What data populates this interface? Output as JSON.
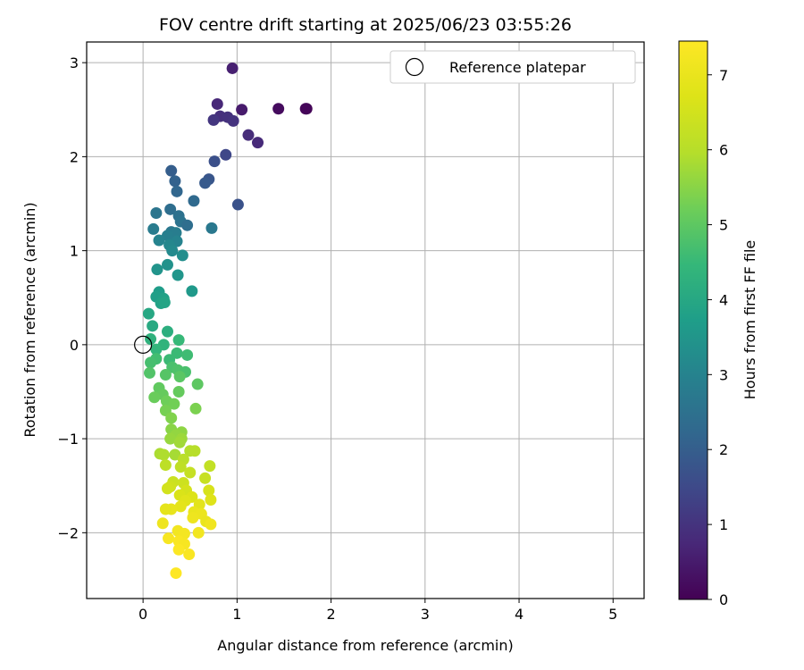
{
  "chart_data": {
    "type": "scatter",
    "title": "FOV centre drift starting at 2025/06/23 03:55:26",
    "xlabel": "Angular distance from reference (arcmin)",
    "ylabel": "Rotation from reference (arcmin)",
    "xlim": [
      -0.6,
      5.33
    ],
    "ylim": [
      -2.7,
      3.22
    ],
    "xticks": [
      0,
      1,
      2,
      3,
      4,
      5
    ],
    "yticks": [
      -2,
      -1,
      0,
      1,
      2,
      3
    ],
    "xtick_labels": [
      "0",
      "1",
      "2",
      "3",
      "4",
      "5"
    ],
    "ytick_labels": [
      "−2",
      "−1",
      "0",
      "1",
      "2",
      "3"
    ],
    "grid": true,
    "colormap": "viridis",
    "colorbar": {
      "label": "Hours from first FF file",
      "range": [
        0,
        7.45
      ],
      "ticks": [
        0,
        1,
        2,
        3,
        4,
        5,
        6,
        7
      ],
      "tick_labels": [
        "0",
        "1",
        "2",
        "3",
        "4",
        "5",
        "6",
        "7"
      ]
    },
    "legend": {
      "entries": [
        "Reference platepar"
      ],
      "placement": "upper right"
    },
    "reference_point": {
      "x": 0.0,
      "y": 0.0,
      "label": "Reference platepar"
    },
    "points": [
      {
        "x": 1.74,
        "y": 2.51,
        "t": 0.05
      },
      {
        "x": 1.73,
        "y": 2.51,
        "t": 0.1
      },
      {
        "x": 1.44,
        "y": 2.51,
        "t": 0.2
      },
      {
        "x": 1.05,
        "y": 2.5,
        "t": 0.5
      },
      {
        "x": 0.95,
        "y": 2.94,
        "t": 0.6
      },
      {
        "x": 0.79,
        "y": 2.56,
        "t": 0.75
      },
      {
        "x": 0.82,
        "y": 2.43,
        "t": 0.9
      },
      {
        "x": 0.9,
        "y": 2.42,
        "t": 0.95
      },
      {
        "x": 0.75,
        "y": 2.39,
        "t": 1.05
      },
      {
        "x": 0.96,
        "y": 2.38,
        "t": 1.0
      },
      {
        "x": 1.12,
        "y": 2.23,
        "t": 0.85
      },
      {
        "x": 1.22,
        "y": 2.15,
        "t": 0.8
      },
      {
        "x": 0.88,
        "y": 2.02,
        "t": 1.45
      },
      {
        "x": 0.76,
        "y": 1.95,
        "t": 1.65
      },
      {
        "x": 0.7,
        "y": 1.76,
        "t": 1.8
      },
      {
        "x": 0.66,
        "y": 1.72,
        "t": 1.9
      },
      {
        "x": 1.01,
        "y": 1.49,
        "t": 1.7
      },
      {
        "x": 0.3,
        "y": 1.85,
        "t": 2.0
      },
      {
        "x": 0.34,
        "y": 1.74,
        "t": 2.1
      },
      {
        "x": 0.36,
        "y": 1.63,
        "t": 2.2
      },
      {
        "x": 0.54,
        "y": 1.53,
        "t": 2.3
      },
      {
        "x": 0.29,
        "y": 1.44,
        "t": 2.4
      },
      {
        "x": 0.14,
        "y": 1.4,
        "t": 2.6
      },
      {
        "x": 0.38,
        "y": 1.37,
        "t": 2.5
      },
      {
        "x": 0.4,
        "y": 1.31,
        "t": 2.55
      },
      {
        "x": 0.47,
        "y": 1.27,
        "t": 2.4
      },
      {
        "x": 0.73,
        "y": 1.24,
        "t": 2.7
      },
      {
        "x": 0.11,
        "y": 1.23,
        "t": 2.8
      },
      {
        "x": 0.3,
        "y": 1.2,
        "t": 2.7
      },
      {
        "x": 0.35,
        "y": 1.19,
        "t": 2.85
      },
      {
        "x": 0.26,
        "y": 1.16,
        "t": 2.9
      },
      {
        "x": 0.17,
        "y": 1.11,
        "t": 3.0
      },
      {
        "x": 0.36,
        "y": 1.1,
        "t": 3.0
      },
      {
        "x": 0.28,
        "y": 1.06,
        "t": 3.1
      },
      {
        "x": 0.31,
        "y": 1.0,
        "t": 3.2
      },
      {
        "x": 0.42,
        "y": 0.95,
        "t": 3.3
      },
      {
        "x": 0.26,
        "y": 0.85,
        "t": 3.4
      },
      {
        "x": 0.15,
        "y": 0.8,
        "t": 3.45
      },
      {
        "x": 0.37,
        "y": 0.74,
        "t": 3.5
      },
      {
        "x": 0.52,
        "y": 0.57,
        "t": 3.6
      },
      {
        "x": 0.17,
        "y": 0.56,
        "t": 3.7
      },
      {
        "x": 0.14,
        "y": 0.51,
        "t": 3.75
      },
      {
        "x": 0.22,
        "y": 0.49,
        "t": 3.8
      },
      {
        "x": 0.19,
        "y": 0.44,
        "t": 3.85
      },
      {
        "x": 0.23,
        "y": 0.45,
        "t": 3.9
      },
      {
        "x": 0.06,
        "y": 0.33,
        "t": 4.0
      },
      {
        "x": 0.1,
        "y": 0.2,
        "t": 4.05
      },
      {
        "x": 0.26,
        "y": 0.14,
        "t": 4.2
      },
      {
        "x": 0.08,
        "y": 0.06,
        "t": 4.3
      },
      {
        "x": 0.22,
        "y": 0.0,
        "t": 4.35
      },
      {
        "x": 0.38,
        "y": 0.05,
        "t": 4.5
      },
      {
        "x": 0.14,
        "y": -0.05,
        "t": 4.4
      },
      {
        "x": 0.36,
        "y": -0.09,
        "t": 4.55
      },
      {
        "x": 0.47,
        "y": -0.11,
        "t": 4.6
      },
      {
        "x": 0.28,
        "y": -0.16,
        "t": 4.55
      },
      {
        "x": 0.14,
        "y": -0.15,
        "t": 4.65
      },
      {
        "x": 0.08,
        "y": -0.19,
        "t": 4.7
      },
      {
        "x": 0.31,
        "y": -0.24,
        "t": 4.75
      },
      {
        "x": 0.37,
        "y": -0.27,
        "t": 4.8
      },
      {
        "x": 0.45,
        "y": -0.29,
        "t": 4.75
      },
      {
        "x": 0.07,
        "y": -0.3,
        "t": 4.85
      },
      {
        "x": 0.24,
        "y": -0.32,
        "t": 4.9
      },
      {
        "x": 0.39,
        "y": -0.34,
        "t": 4.95
      },
      {
        "x": 0.58,
        "y": -0.42,
        "t": 5.0
      },
      {
        "x": 0.17,
        "y": -0.46,
        "t": 5.05
      },
      {
        "x": 0.38,
        "y": -0.5,
        "t": 5.1
      },
      {
        "x": 0.21,
        "y": -0.53,
        "t": 5.1
      },
      {
        "x": 0.12,
        "y": -0.56,
        "t": 5.15
      },
      {
        "x": 0.25,
        "y": -0.6,
        "t": 5.2
      },
      {
        "x": 0.33,
        "y": -0.63,
        "t": 5.25
      },
      {
        "x": 0.24,
        "y": -0.7,
        "t": 5.3
      },
      {
        "x": 0.56,
        "y": -0.68,
        "t": 5.35
      },
      {
        "x": 0.3,
        "y": -0.78,
        "t": 5.4
      },
      {
        "x": 0.3,
        "y": -0.9,
        "t": 5.5
      },
      {
        "x": 0.41,
        "y": -0.93,
        "t": 5.55
      },
      {
        "x": 0.35,
        "y": -0.96,
        "t": 5.6
      },
      {
        "x": 0.29,
        "y": -1.0,
        "t": 5.65
      },
      {
        "x": 0.41,
        "y": -1.0,
        "t": 5.7
      },
      {
        "x": 0.39,
        "y": -1.04,
        "t": 5.75
      },
      {
        "x": 0.18,
        "y": -1.16,
        "t": 5.85
      },
      {
        "x": 0.22,
        "y": -1.17,
        "t": 5.9
      },
      {
        "x": 0.34,
        "y": -1.17,
        "t": 5.8
      },
      {
        "x": 0.5,
        "y": -1.13,
        "t": 5.95
      },
      {
        "x": 0.55,
        "y": -1.13,
        "t": 6.0
      },
      {
        "x": 0.43,
        "y": -1.22,
        "t": 6.05
      },
      {
        "x": 0.24,
        "y": -1.28,
        "t": 6.1
      },
      {
        "x": 0.4,
        "y": -1.3,
        "t": 6.15
      },
      {
        "x": 0.71,
        "y": -1.29,
        "t": 6.2
      },
      {
        "x": 0.5,
        "y": -1.36,
        "t": 6.25
      },
      {
        "x": 0.66,
        "y": -1.42,
        "t": 6.3
      },
      {
        "x": 0.32,
        "y": -1.46,
        "t": 6.35
      },
      {
        "x": 0.43,
        "y": -1.47,
        "t": 6.4
      },
      {
        "x": 0.29,
        "y": -1.51,
        "t": 6.45
      },
      {
        "x": 0.26,
        "y": -1.53,
        "t": 6.5
      },
      {
        "x": 0.46,
        "y": -1.55,
        "t": 6.55
      },
      {
        "x": 0.7,
        "y": -1.55,
        "t": 6.6
      },
      {
        "x": 0.39,
        "y": -1.6,
        "t": 6.65
      },
      {
        "x": 0.52,
        "y": -1.62,
        "t": 6.7
      },
      {
        "x": 0.72,
        "y": -1.65,
        "t": 6.75
      },
      {
        "x": 0.45,
        "y": -1.66,
        "t": 6.8
      },
      {
        "x": 0.6,
        "y": -1.7,
        "t": 6.85
      },
      {
        "x": 0.4,
        "y": -1.72,
        "t": 6.9
      },
      {
        "x": 0.3,
        "y": -1.75,
        "t": 6.95
      },
      {
        "x": 0.24,
        "y": -1.75,
        "t": 6.9
      },
      {
        "x": 0.54,
        "y": -1.78,
        "t": 7.0
      },
      {
        "x": 0.62,
        "y": -1.8,
        "t": 7.05
      },
      {
        "x": 0.53,
        "y": -1.84,
        "t": 7.1
      },
      {
        "x": 0.67,
        "y": -1.88,
        "t": 7.0
      },
      {
        "x": 0.21,
        "y": -1.9,
        "t": 7.1
      },
      {
        "x": 0.72,
        "y": -1.91,
        "t": 7.15
      },
      {
        "x": 0.37,
        "y": -1.98,
        "t": 7.2
      },
      {
        "x": 0.44,
        "y": -2.01,
        "t": 7.25
      },
      {
        "x": 0.59,
        "y": -2.0,
        "t": 7.2
      },
      {
        "x": 0.27,
        "y": -2.06,
        "t": 7.3
      },
      {
        "x": 0.38,
        "y": -2.09,
        "t": 7.35
      },
      {
        "x": 0.44,
        "y": -2.12,
        "t": 7.3
      },
      {
        "x": 0.38,
        "y": -2.18,
        "t": 7.4
      },
      {
        "x": 0.49,
        "y": -2.23,
        "t": 7.35
      },
      {
        "x": 0.35,
        "y": -2.43,
        "t": 7.45
      }
    ]
  }
}
